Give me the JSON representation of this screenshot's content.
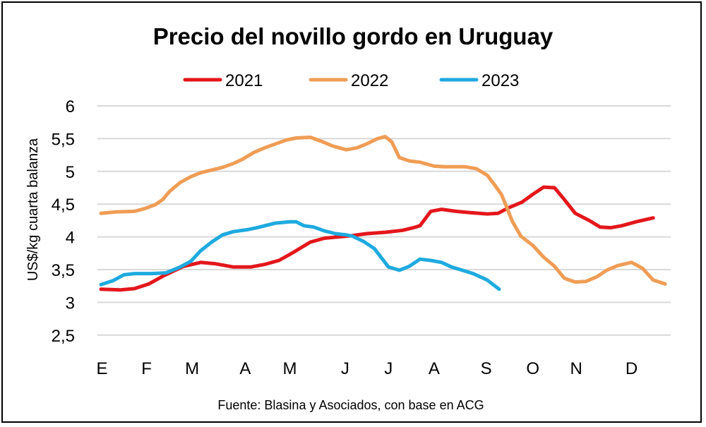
{
  "chart_data": {
    "type": "line",
    "title": "Precio del novillo gordo en Uruguay",
    "ylabel": "US$/kg cuarta balanza",
    "xlabel": "",
    "source": "Fuente: Blasina y Asociados, con base en ACG",
    "x_unit": "week of year",
    "x_tick_labels": [
      "E",
      "F",
      "M",
      "A",
      "M",
      "J",
      "J",
      "A",
      "S",
      "O",
      "N",
      "D"
    ],
    "y_ticks": [
      "6",
      "5,5",
      "5",
      "4,5",
      "4",
      "3,5",
      "3",
      "2,5"
    ],
    "ylim": [
      2.5,
      6
    ],
    "grid": "horizontal",
    "legend_position": "top",
    "series": [
      {
        "name": "2021",
        "color": "#e3171c",
        "points": [
          [
            1,
            3.2
          ],
          [
            2.8,
            3.19
          ],
          [
            4.1,
            3.21
          ],
          [
            5.4,
            3.28
          ],
          [
            6.7,
            3.4
          ],
          [
            8.6,
            3.55
          ],
          [
            10.2,
            3.61
          ],
          [
            11.5,
            3.59
          ],
          [
            13.2,
            3.54
          ],
          [
            14.8,
            3.54
          ],
          [
            16.1,
            3.58
          ],
          [
            17.4,
            3.64
          ],
          [
            18.7,
            3.76
          ],
          [
            20.3,
            3.92
          ],
          [
            21.6,
            3.98
          ],
          [
            22.9,
            4.0
          ],
          [
            24.2,
            4.02
          ],
          [
            25.5,
            4.05
          ],
          [
            27.2,
            4.07
          ],
          [
            28.8,
            4.1
          ],
          [
            29.8,
            4.14
          ],
          [
            30.4,
            4.17
          ],
          [
            31.4,
            4.39
          ],
          [
            32.4,
            4.42
          ],
          [
            33.7,
            4.39
          ],
          [
            35.0,
            4.37
          ],
          [
            36.6,
            4.35
          ],
          [
            37.6,
            4.36
          ],
          [
            38.5,
            4.44
          ],
          [
            39.8,
            4.53
          ],
          [
            40.8,
            4.65
          ],
          [
            41.8,
            4.76
          ],
          [
            42.8,
            4.75
          ],
          [
            43.7,
            4.57
          ],
          [
            44.7,
            4.36
          ],
          [
            46.0,
            4.25
          ],
          [
            47.0,
            4.15
          ],
          [
            48.0,
            4.14
          ],
          [
            49.0,
            4.17
          ],
          [
            50.3,
            4.23
          ],
          [
            51.9,
            4.29
          ]
        ]
      },
      {
        "name": "2022",
        "color": "#ef9d55",
        "points": [
          [
            1,
            4.36
          ],
          [
            2.4,
            4.38
          ],
          [
            4.1,
            4.39
          ],
          [
            5.0,
            4.43
          ],
          [
            6.0,
            4.49
          ],
          [
            6.7,
            4.57
          ],
          [
            7.3,
            4.69
          ],
          [
            8.3,
            4.83
          ],
          [
            9.3,
            4.92
          ],
          [
            10.2,
            4.98
          ],
          [
            11.2,
            5.02
          ],
          [
            12.2,
            5.06
          ],
          [
            13.2,
            5.12
          ],
          [
            14.1,
            5.19
          ],
          [
            15.1,
            5.29
          ],
          [
            16.1,
            5.36
          ],
          [
            17.1,
            5.42
          ],
          [
            18.1,
            5.48
          ],
          [
            19.0,
            5.51
          ],
          [
            20.3,
            5.52
          ],
          [
            21.3,
            5.46
          ],
          [
            22.3,
            5.39
          ],
          [
            23.6,
            5.33
          ],
          [
            24.6,
            5.36
          ],
          [
            25.5,
            5.42
          ],
          [
            26.5,
            5.5
          ],
          [
            27.2,
            5.53
          ],
          [
            27.8,
            5.45
          ],
          [
            28.5,
            5.21
          ],
          [
            29.4,
            5.16
          ],
          [
            30.4,
            5.14
          ],
          [
            31.7,
            5.08
          ],
          [
            32.7,
            5.07
          ],
          [
            34.6,
            5.07
          ],
          [
            35.6,
            5.04
          ],
          [
            36.6,
            4.94
          ],
          [
            37.2,
            4.81
          ],
          [
            37.9,
            4.65
          ],
          [
            38.3,
            4.49
          ],
          [
            38.9,
            4.24
          ],
          [
            39.7,
            4.01
          ],
          [
            40.8,
            3.87
          ],
          [
            41.8,
            3.69
          ],
          [
            42.8,
            3.55
          ],
          [
            43.7,
            3.37
          ],
          [
            44.7,
            3.31
          ],
          [
            45.7,
            3.32
          ],
          [
            46.7,
            3.39
          ],
          [
            47.6,
            3.49
          ],
          [
            48.6,
            3.56
          ],
          [
            49.9,
            3.61
          ],
          [
            50.9,
            3.52
          ],
          [
            51.9,
            3.34
          ],
          [
            53.0,
            3.28
          ]
        ]
      },
      {
        "name": "2023",
        "color": "#1eaadf",
        "points": [
          [
            1,
            3.27
          ],
          [
            2.1,
            3.33
          ],
          [
            3.1,
            3.42
          ],
          [
            4.1,
            3.44
          ],
          [
            5.7,
            3.44
          ],
          [
            7.0,
            3.45
          ],
          [
            8.3,
            3.54
          ],
          [
            9.3,
            3.63
          ],
          [
            10.2,
            3.79
          ],
          [
            11.2,
            3.92
          ],
          [
            12.2,
            4.03
          ],
          [
            13.2,
            4.08
          ],
          [
            14.5,
            4.11
          ],
          [
            15.4,
            4.14
          ],
          [
            16.1,
            4.17
          ],
          [
            17.1,
            4.21
          ],
          [
            18.4,
            4.23
          ],
          [
            19.0,
            4.23
          ],
          [
            19.7,
            4.17
          ],
          [
            20.6,
            4.15
          ],
          [
            21.6,
            4.09
          ],
          [
            22.6,
            4.05
          ],
          [
            23.6,
            4.03
          ],
          [
            24.2,
            4.01
          ],
          [
            25.2,
            3.93
          ],
          [
            26.2,
            3.82
          ],
          [
            27.5,
            3.54
          ],
          [
            28.5,
            3.49
          ],
          [
            29.4,
            3.55
          ],
          [
            30.4,
            3.66
          ],
          [
            31.4,
            3.64
          ],
          [
            32.4,
            3.61
          ],
          [
            33.3,
            3.54
          ],
          [
            34.3,
            3.49
          ],
          [
            35.3,
            3.44
          ],
          [
            36.6,
            3.34
          ],
          [
            37.7,
            3.2
          ]
        ]
      }
    ]
  }
}
